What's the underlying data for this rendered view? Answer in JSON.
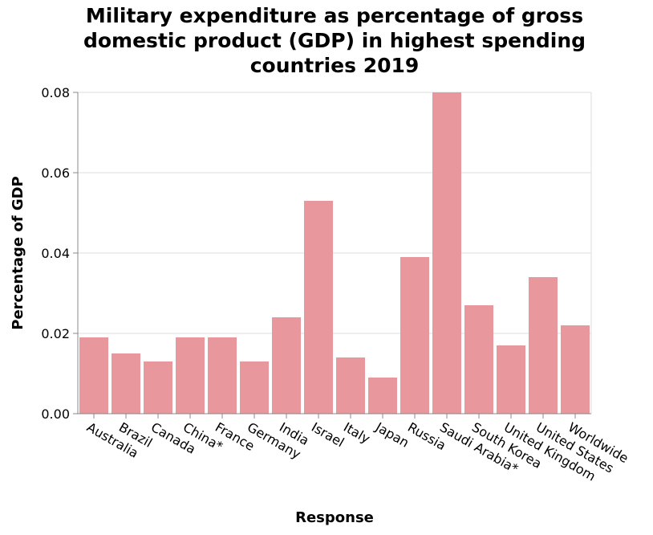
{
  "chart_data": {
    "type": "bar",
    "title": "Military expenditure as percentage of gross domestic product (GDP) in highest spending countries 2019",
    "xlabel": "Response",
    "ylabel": "Percentage of GDP",
    "categories": [
      "Australia",
      "Brazil",
      "Canada",
      "China*",
      "France",
      "Germany",
      "India",
      "Israel",
      "Italy",
      "Japan",
      "Russia",
      "Saudi Arabia*",
      "South Korea",
      "United Kingdom",
      "United States",
      "Worldwide"
    ],
    "values": [
      0.019,
      0.015,
      0.013,
      0.019,
      0.019,
      0.013,
      0.024,
      0.053,
      0.014,
      0.009,
      0.039,
      0.08,
      0.027,
      0.017,
      0.034,
      0.022
    ],
    "ylim": [
      0,
      0.08
    ],
    "yticks": [
      "0.00",
      "0.02",
      "0.04",
      "0.06",
      "0.08"
    ],
    "grid": true,
    "bar_color": "#e8979c"
  }
}
